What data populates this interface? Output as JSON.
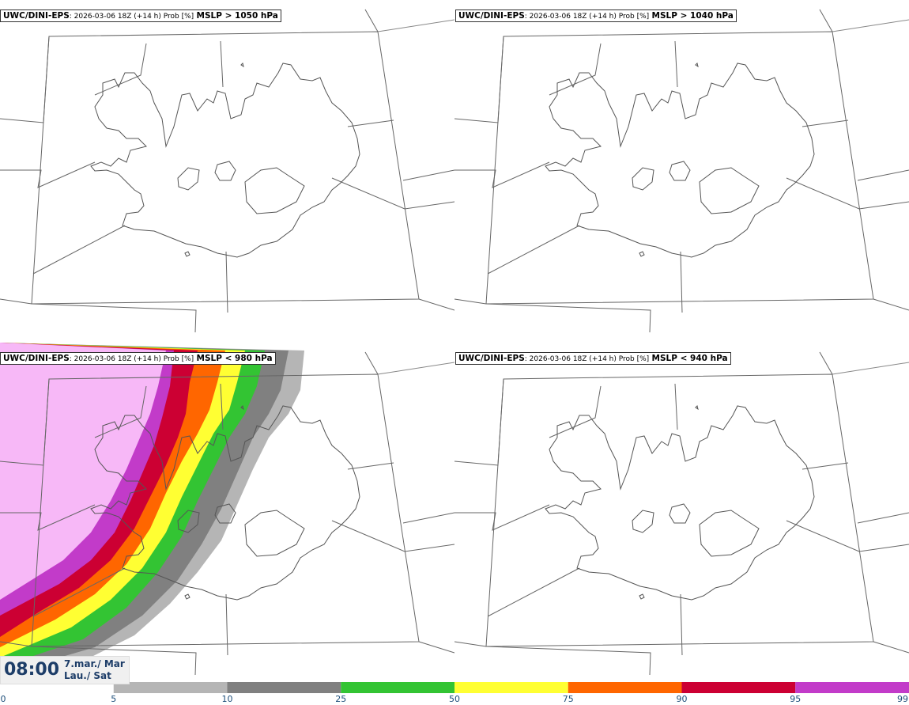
{
  "panels": [
    {
      "model": "UWC/DINI-EPS",
      "meta": ": 2026-03-06 18Z (+14 h) Prob [%]",
      "field": "MSLP > 1050 hPa"
    },
    {
      "model": "UWC/DINI-EPS",
      "meta": ": 2026-03-06 18Z (+14 h) Prob [%]",
      "field": "MSLP > 1040 hPa"
    },
    {
      "model": "UWC/DINI-EPS",
      "meta": ": 2026-03-06 18Z (+14 h) Prob [%]",
      "field": "MSLP < 980 hPa"
    },
    {
      "model": "UWC/DINI-EPS",
      "meta": ": 2026-03-06 18Z (+14 h) Prob [%]",
      "field": "MSLP < 940 hPa"
    }
  ],
  "valid_time": {
    "hour": "08:00",
    "date_line1": "7.mar./ Mar",
    "date_line2": "Lau./ Sat"
  },
  "legend": {
    "ticks": [
      "0",
      "5",
      "10",
      "25",
      "50",
      "75",
      "90",
      "95",
      "99"
    ],
    "colors": [
      "#ffffff",
      "#b5b5b5",
      "#808080",
      "#33c433",
      "#ffff33",
      "#ff6600",
      "#cc0033",
      "#c23bc9",
      "#f7b8f7"
    ]
  }
}
